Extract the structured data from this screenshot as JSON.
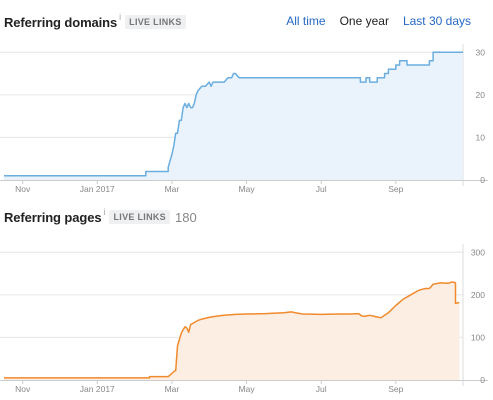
{
  "time_filters": {
    "all_time": "All time",
    "one_year": "One year",
    "last_30_days": "Last 30 days",
    "active": "One year"
  },
  "domains_panel": {
    "title": "Referring domains",
    "info": "i",
    "badge": "LIVE LINKS"
  },
  "pages_panel": {
    "title": "Referring pages",
    "info": "i",
    "badge": "LIVE LINKS",
    "count": "180"
  },
  "chart_data": [
    {
      "type": "area",
      "title": "Referring domains",
      "xlabel": "",
      "ylabel": "",
      "x_ticks": [
        "Nov",
        "Jan 2017",
        "Mar",
        "May",
        "Jul",
        "Sep"
      ],
      "x_tick_positions": [
        0.5,
        2.5,
        4.5,
        6.5,
        8.5,
        10.5
      ],
      "xlim": [
        0,
        12.3
      ],
      "yticks": [
        0,
        10,
        20,
        30
      ],
      "ylim": [
        0,
        31
      ],
      "grid": true,
      "color": "#6aaee0",
      "fill": "#eaf3fc",
      "series": [
        {
          "x": [
            0,
            3.8,
            3.8,
            4.4,
            4.4,
            4.5,
            4.55,
            4.6,
            4.65,
            4.7,
            4.75,
            4.8,
            4.85,
            4.9,
            4.95,
            5.0,
            5.05,
            5.1,
            5.15,
            5.2,
            5.3,
            5.4,
            5.5,
            5.55,
            5.6,
            5.65,
            5.7,
            5.75,
            5.8,
            5.85,
            5.9,
            6.0,
            6.1,
            6.15,
            6.2,
            6.3,
            6.4,
            9.55,
            9.55,
            9.7,
            9.7,
            9.8,
            9.8,
            10.0,
            10.0,
            10.2,
            10.2,
            10.3,
            10.3,
            10.5,
            10.5,
            10.6,
            10.6,
            10.8,
            10.8,
            11.4,
            11.4,
            11.5,
            11.5,
            12.3
          ],
          "y": [
            1,
            1,
            2,
            2,
            3,
            6,
            8,
            11,
            11,
            14,
            14,
            17,
            18,
            17,
            18,
            17,
            17,
            18,
            20,
            21,
            22,
            22,
            23,
            22,
            23,
            23,
            23,
            23,
            23,
            23,
            23,
            24,
            24,
            25,
            25,
            24,
            24,
            24,
            23,
            23,
            24,
            24,
            23,
            23,
            24,
            24,
            25,
            25,
            26,
            26,
            27,
            27,
            28,
            28,
            27,
            27,
            28,
            28,
            30,
            30
          ]
        }
      ]
    },
    {
      "type": "area",
      "title": "Referring pages",
      "xlabel": "",
      "ylabel": "",
      "x_ticks": [
        "Nov",
        "Jan 2017",
        "Mar",
        "May",
        "Jul",
        "Sep"
      ],
      "x_tick_positions": [
        0.5,
        2.5,
        4.5,
        6.5,
        8.5,
        10.5
      ],
      "xlim": [
        0,
        12.3
      ],
      "yticks": [
        0,
        100,
        200,
        300
      ],
      "ylim": [
        0,
        310
      ],
      "grid": true,
      "color": "#f08a2c",
      "fill": "#fdeee3",
      "series": [
        {
          "x": [
            0,
            3.9,
            3.9,
            4.4,
            4.5,
            4.55,
            4.6,
            4.65,
            4.7,
            4.75,
            4.8,
            4.85,
            4.9,
            4.95,
            5.0,
            5.1,
            5.2,
            5.3,
            5.5,
            5.7,
            5.9,
            6.2,
            6.5,
            7.0,
            7.5,
            7.7,
            7.8,
            8.0,
            8.5,
            9.0,
            9.3,
            9.5,
            9.6,
            9.7,
            9.8,
            9.9,
            10.0,
            10.1,
            10.2,
            10.3,
            10.5,
            10.7,
            10.9,
            11.1,
            11.2,
            11.3,
            11.4,
            11.5,
            11.7,
            11.9,
            12.0,
            12.05,
            12.1,
            12.1,
            12.2
          ],
          "y": [
            5,
            5,
            8,
            8,
            15,
            20,
            22,
            80,
            95,
            110,
            118,
            125,
            122,
            112,
            130,
            135,
            140,
            143,
            147,
            150,
            152,
            154,
            155,
            156,
            158,
            160,
            158,
            155,
            154,
            155,
            155,
            156,
            150,
            150,
            152,
            150,
            148,
            146,
            152,
            158,
            175,
            190,
            200,
            210,
            213,
            215,
            215,
            225,
            228,
            227,
            230,
            230,
            228,
            180,
            182
          ]
        }
      ]
    }
  ]
}
